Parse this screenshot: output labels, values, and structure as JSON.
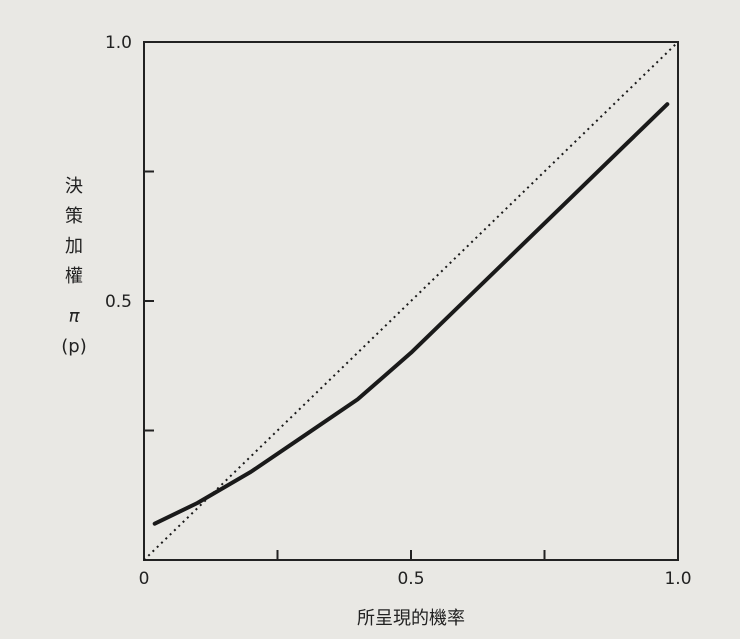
{
  "chart_data": {
    "type": "line",
    "title": "",
    "xlabel": "所呈現的機率",
    "ylabel_lines": [
      "決",
      "策",
      "加",
      "權",
      "π",
      "(p)"
    ],
    "xlim": [
      0,
      1
    ],
    "ylim": [
      0,
      1
    ],
    "x_tick_labels": [
      {
        "value": 0,
        "label": "0"
      },
      {
        "value": 0.5,
        "label": "0.5"
      },
      {
        "value": 1,
        "label": "1.0"
      }
    ],
    "y_tick_labels": [
      {
        "value": 0.5,
        "label": "0.5"
      },
      {
        "value": 1,
        "label": "1.0"
      }
    ],
    "minor_x_ticks": [
      0.25,
      0.5,
      0.75
    ],
    "minor_y_ticks": [
      0.25,
      0.5,
      0.75
    ],
    "grid": false,
    "series": [
      {
        "style": "solid",
        "color": "#1a1a1a",
        "points": [
          {
            "x": 0.02,
            "y": 0.07
          },
          {
            "x": 0.1,
            "y": 0.11
          },
          {
            "x": 0.2,
            "y": 0.17
          },
          {
            "x": 0.3,
            "y": 0.24
          },
          {
            "x": 0.4,
            "y": 0.31
          },
          {
            "x": 0.5,
            "y": 0.4
          },
          {
            "x": 0.6,
            "y": 0.5
          },
          {
            "x": 0.7,
            "y": 0.6
          },
          {
            "x": 0.8,
            "y": 0.7
          },
          {
            "x": 0.9,
            "y": 0.8
          },
          {
            "x": 0.98,
            "y": 0.88
          }
        ]
      },
      {
        "style": "dotted",
        "color": "#1a1a1a",
        "points": [
          {
            "x": 0,
            "y": 0
          },
          {
            "x": 1,
            "y": 1
          }
        ]
      }
    ]
  }
}
